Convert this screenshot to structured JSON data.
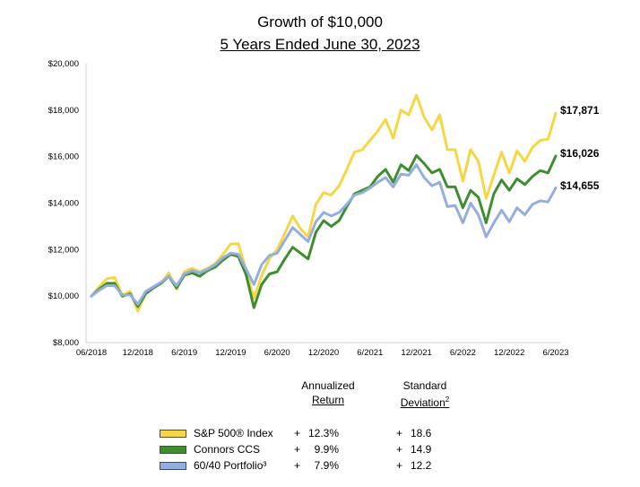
{
  "title": "Growth of $10,000",
  "subtitle": "5 Years Ended June 30, 2023",
  "chart_data": {
    "type": "line",
    "ylim": [
      8000,
      20000
    ],
    "y_ticks": [
      "$8,000",
      "$10,000",
      "$12,000",
      "$14,000",
      "$16,000",
      "$18,000",
      "$20,000"
    ],
    "y_tick_values": [
      8000,
      10000,
      12000,
      14000,
      16000,
      18000,
      20000
    ],
    "x_tick_labels": [
      "06/2018",
      "12/2018",
      "6/2019",
      "12/2019",
      "6/2020",
      "12/2020",
      "6/2021",
      "12/2021",
      "6/2022",
      "12/2022",
      "6/2023"
    ],
    "x_tick_positions": [
      0,
      6,
      12,
      18,
      24,
      30,
      36,
      42,
      48,
      54,
      60
    ],
    "grid": false,
    "series": [
      {
        "name": "S&P 500® Index",
        "color": "#F7D646",
        "end_label": "$17,871",
        "values": [
          10000,
          10400,
          10750,
          10800,
          10050,
          10200,
          9350,
          10100,
          10400,
          10550,
          11000,
          10300,
          11050,
          11200,
          11050,
          11200,
          11400,
          11800,
          12250,
          12250,
          11100,
          9900,
          10900,
          11600,
          12000,
          12700,
          13450,
          12900,
          12550,
          13950,
          14450,
          14350,
          14750,
          15450,
          16200,
          16300,
          16700,
          17100,
          17600,
          16800,
          18000,
          17800,
          18650,
          17700,
          17150,
          17800,
          16300,
          16300,
          14950,
          16300,
          15800,
          14200,
          15200,
          16200,
          15300,
          16250,
          15800,
          16400,
          16700,
          16750,
          17871
        ]
      },
      {
        "name": "Connors CCS",
        "color": "#3E8E2F",
        "end_label": "$16,026",
        "values": [
          10000,
          10300,
          10550,
          10550,
          10000,
          10100,
          9550,
          10100,
          10350,
          10550,
          10850,
          10350,
          10900,
          11000,
          10850,
          11100,
          11250,
          11550,
          11800,
          11700,
          10900,
          9500,
          10500,
          10950,
          11050,
          11600,
          12100,
          11850,
          11600,
          12750,
          13250,
          13000,
          13250,
          13850,
          14400,
          14550,
          14700,
          15150,
          15450,
          14900,
          15650,
          15400,
          16050,
          15700,
          15300,
          15450,
          14700,
          14700,
          13800,
          14550,
          14250,
          13150,
          14400,
          15000,
          14550,
          15050,
          14800,
          15150,
          15400,
          15300,
          16026
        ]
      },
      {
        "name": "60/40 Portfolio³",
        "color": "#94AEE0",
        "end_label": "$14,655",
        "values": [
          10000,
          10250,
          10450,
          10450,
          10050,
          10050,
          9650,
          10200,
          10400,
          10600,
          10850,
          10450,
          10950,
          11100,
          11000,
          11150,
          11350,
          11650,
          11850,
          11800,
          11150,
          10500,
          11350,
          11750,
          11850,
          12400,
          12950,
          12650,
          12350,
          13200,
          13600,
          13450,
          13600,
          13950,
          14350,
          14450,
          14650,
          14900,
          15100,
          14700,
          15250,
          15200,
          15650,
          15100,
          14750,
          14900,
          13850,
          13900,
          13150,
          14000,
          13500,
          12550,
          13150,
          13700,
          13200,
          13800,
          13500,
          13950,
          14100,
          14050,
          14655
        ]
      }
    ]
  },
  "stats": {
    "header_return_line1": "Annualized",
    "header_return_line2": "Return",
    "header_sd_line1": "Standard",
    "header_sd_line2": "Deviation",
    "header_sd_sup": "2",
    "rows": [
      {
        "label": "S&P 500® Index",
        "color": "#F7D646",
        "sign1": "+",
        "return": "12.3%",
        "sign2": "+",
        "sd": "18.6"
      },
      {
        "label": "Connors CCS",
        "color": "#3E8E2F",
        "sign1": "+",
        "return": "9.9%",
        "sign2": "+",
        "sd": "14.9"
      },
      {
        "label": "60/40 Portfolio³",
        "color": "#94AEE0",
        "sign1": "+",
        "return": "7.9%",
        "sign2": "+",
        "sd": "12.2"
      }
    ]
  }
}
